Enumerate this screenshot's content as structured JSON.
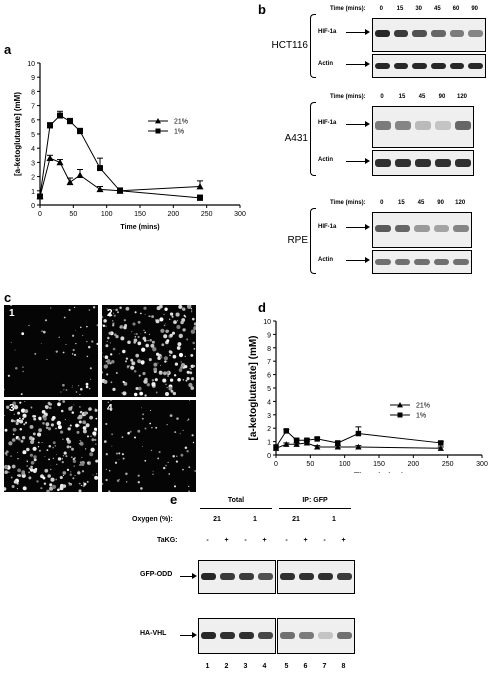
{
  "panels": {
    "a": "a",
    "b": "b",
    "c": "c",
    "d": "d",
    "e": "e"
  },
  "chart_data": [
    {
      "type": "line",
      "panel": "a",
      "xlabel": "Time (mins)",
      "ylabel": "[a-ketoglutarate] (mM)",
      "xlim": [
        0,
        300
      ],
      "ylim": [
        0,
        10
      ],
      "xticks": [
        "0",
        "50",
        "100",
        "150",
        "200",
        "250",
        "300"
      ],
      "yticks": [
        "0",
        "1",
        "2",
        "3",
        "4",
        "5",
        "6",
        "7",
        "8",
        "9",
        "10"
      ],
      "legend_position": "right",
      "series": [
        {
          "name": "21%",
          "marker": "triangle",
          "x": [
            0,
            15,
            30,
            45,
            60,
            90,
            120,
            240
          ],
          "y": [
            0.6,
            3.3,
            3.0,
            1.6,
            2.1,
            1.1,
            1.0,
            1.3
          ],
          "err": [
            0,
            0.2,
            0.2,
            0.3,
            0.4,
            0.2,
            0.2,
            0.4
          ]
        },
        {
          "name": "1%",
          "marker": "square",
          "x": [
            0,
            15,
            30,
            45,
            60,
            90,
            120,
            240
          ],
          "y": [
            0.6,
            5.6,
            6.3,
            5.9,
            5.2,
            2.6,
            1.0,
            0.5
          ],
          "err": [
            0,
            0.2,
            0.3,
            0.2,
            0.2,
            0.7,
            0.2,
            0.2
          ]
        }
      ]
    },
    {
      "type": "line",
      "panel": "d",
      "xlabel": "Time (mins)",
      "ylabel": "[a-ketoglutarate] (mM)",
      "xlim": [
        0,
        300
      ],
      "ylim": [
        0,
        10
      ],
      "xticks": [
        "0",
        "50",
        "100",
        "150",
        "200",
        "250",
        "300"
      ],
      "yticks": [
        "0",
        "1",
        "2",
        "3",
        "4",
        "5",
        "6",
        "7",
        "8",
        "9",
        "10"
      ],
      "legend_position": "right",
      "series": [
        {
          "name": "21%",
          "marker": "triangle",
          "x": [
            0,
            15,
            30,
            45,
            60,
            90,
            120,
            240
          ],
          "y": [
            0.5,
            0.8,
            0.8,
            0.9,
            0.6,
            0.6,
            0.6,
            0.5
          ],
          "err": [
            0,
            0.1,
            0.1,
            0.1,
            0.1,
            0.1,
            0.1,
            0.1
          ]
        },
        {
          "name": "1%",
          "marker": "square",
          "x": [
            0,
            15,
            30,
            45,
            60,
            90,
            120,
            240
          ],
          "y": [
            0.6,
            1.8,
            1.1,
            1.1,
            1.2,
            0.9,
            1.6,
            0.9
          ],
          "err": [
            0,
            0.1,
            0.1,
            0.1,
            0.1,
            0.1,
            0.5,
            0.1
          ]
        }
      ]
    }
  ],
  "panel_b": {
    "blots": [
      {
        "cell_line": "HCT116",
        "time_label": "Time (mins):",
        "times": [
          "0",
          "15",
          "30",
          "45",
          "60",
          "90"
        ],
        "hif_label": "HIF-1a",
        "actin_label": "Actin",
        "hif_intensity": [
          0.95,
          0.85,
          0.75,
          0.65,
          0.55,
          0.5
        ],
        "actin_intensity": [
          0.95,
          0.95,
          0.95,
          0.95,
          0.95,
          0.95
        ]
      },
      {
        "cell_line": "A431",
        "time_label": "Time (mins):",
        "times": [
          "0",
          "15",
          "45",
          "90",
          "120"
        ],
        "hif_label": "HIF-1a",
        "actin_label": "Actin",
        "hif_intensity": [
          0.55,
          0.5,
          0.25,
          0.2,
          0.65
        ],
        "actin_intensity": [
          0.9,
          0.9,
          0.9,
          0.9,
          0.9
        ]
      },
      {
        "cell_line": "RPE",
        "time_label": "Time (mins):",
        "times": [
          "0",
          "15",
          "45",
          "90",
          "120"
        ],
        "hif_label": "HIF-1a",
        "actin_label": "Actin",
        "hif_intensity": [
          0.7,
          0.65,
          0.4,
          0.35,
          0.5
        ],
        "actin_intensity": [
          0.6,
          0.6,
          0.6,
          0.6,
          0.6
        ]
      }
    ]
  },
  "panel_c": {
    "images": [
      {
        "number": "1",
        "density": 0.15
      },
      {
        "number": "2",
        "density": 0.8
      },
      {
        "number": "3",
        "density": 0.9
      },
      {
        "number": "4",
        "density": 0.2
      }
    ]
  },
  "panel_e": {
    "group_total": "Total",
    "group_ip": "IP: GFP",
    "oxygen_label": "Oxygen (%):",
    "oxygen_values": [
      "21",
      "1",
      "21",
      "1"
    ],
    "takg_label": "TaKG:",
    "takg_values": [
      "-",
      "+",
      "-",
      "+",
      "-",
      "+",
      "-",
      "+"
    ],
    "gfp_label": "GFP-ODD",
    "ha_label": "HA-VHL",
    "lanes": [
      "1",
      "2",
      "3",
      "4",
      "5",
      "6",
      "7",
      "8"
    ],
    "gfp_intensity": [
      0.95,
      0.85,
      0.85,
      0.75,
      0.9,
      0.9,
      0.9,
      0.85
    ],
    "ha_intensity": [
      0.95,
      0.9,
      0.9,
      0.8,
      0.6,
      0.55,
      0.2,
      0.6
    ]
  }
}
